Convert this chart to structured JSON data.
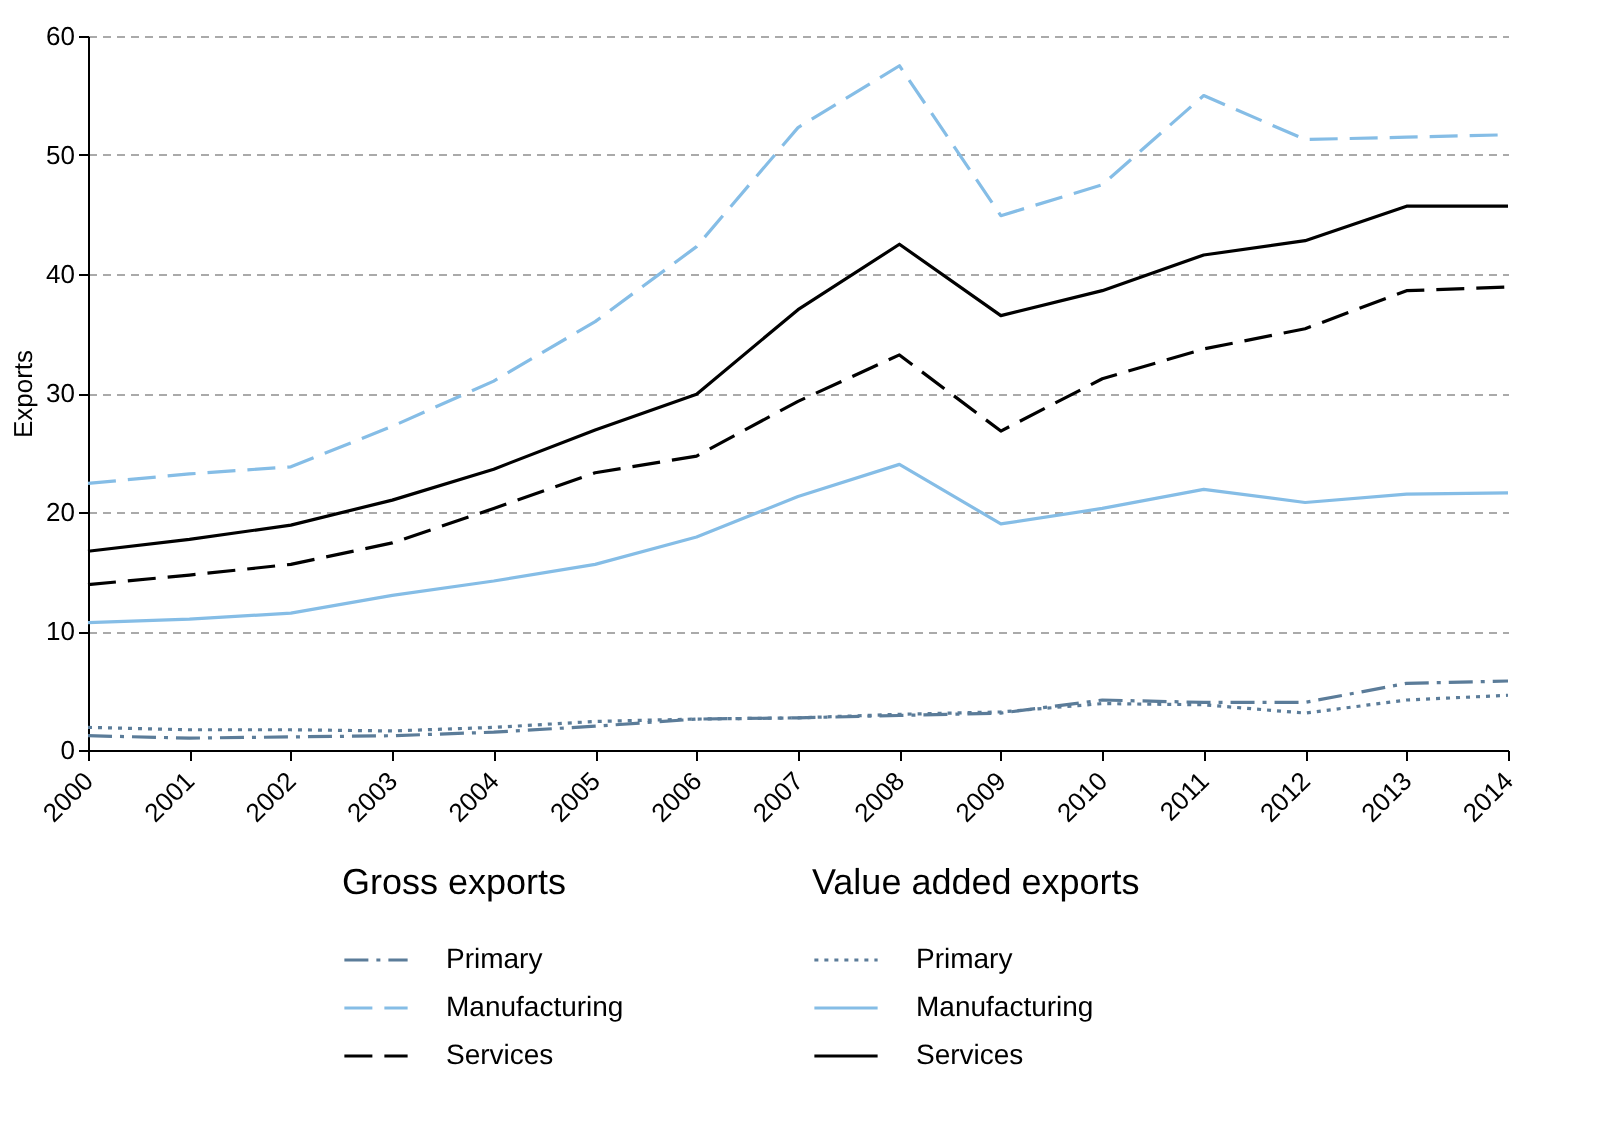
{
  "chart_data": {
    "type": "line",
    "ylabel": "Exports",
    "categories": [
      "2000",
      "2001",
      "2002",
      "2003",
      "2004",
      "2005",
      "2006",
      "2007",
      "2008",
      "2009",
      "2010",
      "2011",
      "2012",
      "2013",
      "2014"
    ],
    "series": [
      {
        "name": "Primary",
        "color": "#5b7c99",
        "line_style": "dashdot",
        "values": [
          1.2,
          1.0,
          1.1,
          1.2,
          1.5,
          2.0,
          2.6,
          2.7,
          2.9,
          3.1,
          4.2,
          4.0,
          4.0,
          5.6,
          5.8
        ]
      },
      {
        "name": "Manufacturing",
        "color": "#85bde6",
        "line_style": "dashed",
        "values": [
          22.4,
          23.2,
          23.8,
          27.2,
          31.0,
          36.0,
          42.3,
          52.3,
          57.5,
          44.9,
          47.5,
          55.0,
          51.3,
          51.5,
          51.7
        ]
      },
      {
        "name": "Services",
        "color": "#000000",
        "line_style": "dashed",
        "values": [
          13.9,
          14.7,
          15.6,
          17.4,
          20.3,
          23.3,
          24.7,
          29.3,
          33.2,
          26.8,
          31.2,
          33.7,
          35.4,
          38.6,
          38.9
        ]
      },
      {
        "name": "Primary",
        "color": "#5b7c99",
        "line_style": "dotted",
        "values": [
          1.9,
          1.7,
          1.7,
          1.6,
          1.9,
          2.4,
          2.6,
          2.7,
          3.0,
          3.2,
          3.9,
          3.8,
          3.1,
          4.2,
          4.6
        ]
      },
      {
        "name": "Manufacturing",
        "color": "#85bde6",
        "line_style": "solid",
        "values": [
          10.7,
          11.0,
          11.5,
          13.0,
          14.2,
          15.6,
          17.9,
          21.3,
          24.0,
          19.0,
          20.3,
          21.9,
          20.8,
          21.5,
          21.6
        ]
      },
      {
        "name": "Services",
        "color": "#000000",
        "line_style": "solid",
        "values": [
          16.7,
          17.7,
          18.9,
          21.0,
          23.6,
          26.9,
          29.9,
          37.0,
          42.5,
          36.5,
          38.6,
          41.6,
          42.8,
          45.7,
          45.7
        ]
      }
    ],
    "annotations": [
      "Gross exports",
      "Value added exports"
    ],
    "ylim": [
      0,
      60
    ],
    "yticks": [
      0,
      10,
      20,
      30,
      40,
      50,
      60
    ],
    "grid": "y",
    "legend": "bottom",
    "marker": "none"
  }
}
